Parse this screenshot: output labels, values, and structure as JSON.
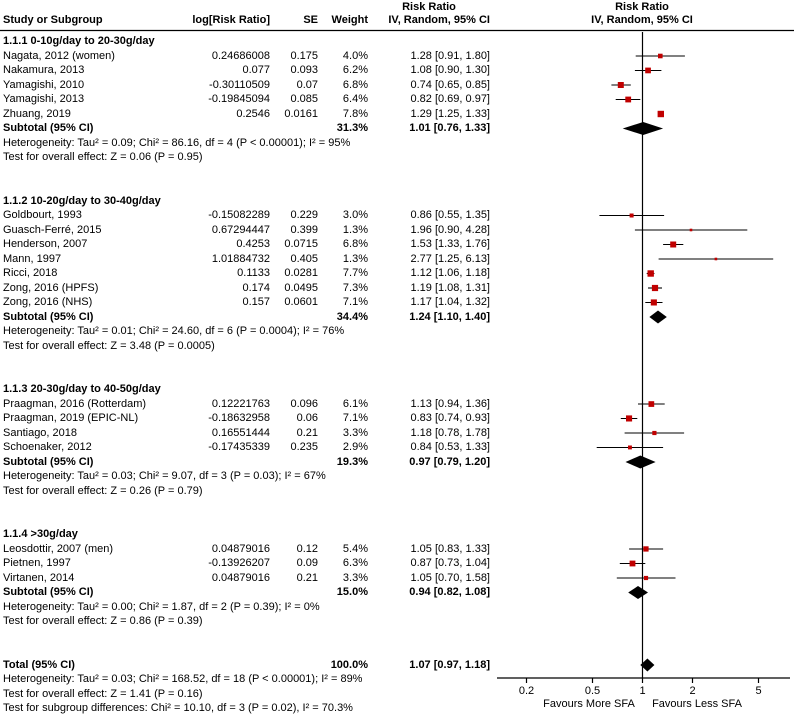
{
  "chart_data": {
    "type": "forest",
    "effect_measure": "Risk Ratio",
    "model": "IV, Random, 95% CI",
    "header": {
      "study": "Study or Subgroup",
      "log_rr": "log[Risk Ratio]",
      "se": "SE",
      "weight": "Weight",
      "ci": "IV, Random, 95% CI",
      "ci_top": "Risk Ratio",
      "plot_top": "Risk Ratio",
      "plot_sub": "IV, Random, 95% CI"
    },
    "axis": {
      "scale": "log",
      "ticks": [
        0.2,
        0.5,
        1,
        2,
        5
      ],
      "tick_labels": [
        "0.2",
        "0.5",
        "1",
        "2",
        "5"
      ],
      "left_label": "Favours More SFA",
      "right_label": "Favours Less SFA"
    },
    "subgroups": [
      {
        "title": "1.1.1 0-10g/day to 20-30g/day",
        "studies": [
          {
            "name": "Nagata, 2012 (women)",
            "log_rr": "0.24686008",
            "se": "0.175",
            "weight": "4.0%",
            "weight_pct": 4.0,
            "ci_text": "1.28 [0.91, 1.80]",
            "est": 1.28,
            "lo": 0.91,
            "hi": 1.8
          },
          {
            "name": "Nakamura, 2013",
            "log_rr": "0.077",
            "se": "0.093",
            "weight": "6.2%",
            "weight_pct": 6.2,
            "ci_text": "1.08 [0.90, 1.30]",
            "est": 1.08,
            "lo": 0.9,
            "hi": 1.3
          },
          {
            "name": "Yamagishi, 2010",
            "log_rr": "-0.30110509",
            "se": "0.07",
            "weight": "6.8%",
            "weight_pct": 6.8,
            "ci_text": "0.74 [0.65, 0.85]",
            "est": 0.74,
            "lo": 0.65,
            "hi": 0.85
          },
          {
            "name": "Yamagishi, 2013",
            "log_rr": "-0.19845094",
            "se": "0.085",
            "weight": "6.4%",
            "weight_pct": 6.4,
            "ci_text": "0.82 [0.69, 0.97]",
            "est": 0.82,
            "lo": 0.69,
            "hi": 0.97
          },
          {
            "name": "Zhuang, 2019",
            "log_rr": "0.2546",
            "se": "0.0161",
            "weight": "7.8%",
            "weight_pct": 7.8,
            "ci_text": "1.29 [1.25, 1.33]",
            "est": 1.29,
            "lo": 1.25,
            "hi": 1.33
          }
        ],
        "subtotal": {
          "label": "Subtotal (95% CI)",
          "weight": "31.3%",
          "ci_text": "1.01 [0.76, 1.33]",
          "est": 1.01,
          "lo": 0.76,
          "hi": 1.33
        },
        "heterogeneity": "Heterogeneity: Tau² = 0.09; Chi² = 86.16, df = 4 (P < 0.00001); I² = 95%",
        "overall_effect": "Test for overall effect: Z = 0.06 (P = 0.95)"
      },
      {
        "title": "1.1.2 10-20g/day to 30-40g/day",
        "studies": [
          {
            "name": "Goldbourt, 1993",
            "log_rr": "-0.15082289",
            "se": "0.229",
            "weight": "3.0%",
            "weight_pct": 3.0,
            "ci_text": "0.86 [0.55, 1.35]",
            "est": 0.86,
            "lo": 0.55,
            "hi": 1.35
          },
          {
            "name": "Guasch-Ferré, 2015",
            "log_rr": "0.67294447",
            "se": "0.399",
            "weight": "1.3%",
            "weight_pct": 1.3,
            "ci_text": "1.96 [0.90, 4.28]",
            "est": 1.96,
            "lo": 0.9,
            "hi": 4.28
          },
          {
            "name": "Henderson, 2007",
            "log_rr": "0.4253",
            "se": "0.0715",
            "weight": "6.8%",
            "weight_pct": 6.8,
            "ci_text": "1.53 [1.33, 1.76]",
            "est": 1.53,
            "lo": 1.33,
            "hi": 1.76
          },
          {
            "name": "Mann, 1997",
            "log_rr": "1.01884732",
            "se": "0.405",
            "weight": "1.3%",
            "weight_pct": 1.3,
            "ci_text": "2.77 [1.25, 6.13]",
            "est": 2.77,
            "lo": 1.25,
            "hi": 6.13
          },
          {
            "name": "Ricci, 2018",
            "log_rr": "0.1133",
            "se": "0.0281",
            "weight": "7.7%",
            "weight_pct": 7.7,
            "ci_text": "1.12 [1.06, 1.18]",
            "est": 1.12,
            "lo": 1.06,
            "hi": 1.18
          },
          {
            "name": "Zong, 2016 (HPFS)",
            "log_rr": "0.174",
            "se": "0.0495",
            "weight": "7.3%",
            "weight_pct": 7.3,
            "ci_text": "1.19 [1.08, 1.31]",
            "est": 1.19,
            "lo": 1.08,
            "hi": 1.31
          },
          {
            "name": "Zong, 2016 (NHS)",
            "log_rr": "0.157",
            "se": "0.0601",
            "weight": "7.1%",
            "weight_pct": 7.1,
            "ci_text": "1.17 [1.04, 1.32]",
            "est": 1.17,
            "lo": 1.04,
            "hi": 1.32
          }
        ],
        "subtotal": {
          "label": "Subtotal (95% CI)",
          "weight": "34.4%",
          "ci_text": "1.24 [1.10, 1.40]",
          "est": 1.24,
          "lo": 1.1,
          "hi": 1.4
        },
        "heterogeneity": "Heterogeneity: Tau² = 0.01; Chi² = 24.60, df = 6 (P = 0.0004); I² = 76%",
        "overall_effect": "Test for overall effect: Z = 3.48 (P = 0.0005)"
      },
      {
        "title": "1.1.3 20-30g/day to 40-50g/day",
        "studies": [
          {
            "name": "Praagman, 2016 (Rotterdam)",
            "log_rr": "0.12221763",
            "se": "0.096",
            "weight": "6.1%",
            "weight_pct": 6.1,
            "ci_text": "1.13 [0.94, 1.36]",
            "est": 1.13,
            "lo": 0.94,
            "hi": 1.36
          },
          {
            "name": "Praagman, 2019 (EPIC-NL)",
            "log_rr": "-0.18632958",
            "se": "0.06",
            "weight": "7.1%",
            "weight_pct": 7.1,
            "ci_text": "0.83 [0.74, 0.93]",
            "est": 0.83,
            "lo": 0.74,
            "hi": 0.93
          },
          {
            "name": "Santiago, 2018",
            "log_rr": "0.16551444",
            "se": "0.21",
            "weight": "3.3%",
            "weight_pct": 3.3,
            "ci_text": "1.18 [0.78, 1.78]",
            "est": 1.18,
            "lo": 0.78,
            "hi": 1.78
          },
          {
            "name": "Schoenaker, 2012",
            "log_rr": "-0.17435339",
            "se": "0.235",
            "weight": "2.9%",
            "weight_pct": 2.9,
            "ci_text": "0.84 [0.53, 1.33]",
            "est": 0.84,
            "lo": 0.53,
            "hi": 1.33
          }
        ],
        "subtotal": {
          "label": "Subtotal (95% CI)",
          "weight": "19.3%",
          "ci_text": "0.97 [0.79, 1.20]",
          "est": 0.97,
          "lo": 0.79,
          "hi": 1.2
        },
        "heterogeneity": "Heterogeneity: Tau² = 0.03; Chi² = 9.07, df = 3 (P = 0.03); I² = 67%",
        "overall_effect": "Test for overall effect: Z = 0.26 (P = 0.79)"
      },
      {
        "title": "1.1.4 >30g/day",
        "studies": [
          {
            "name": "Leosdottir, 2007 (men)",
            "log_rr": "0.04879016",
            "se": "0.12",
            "weight": "5.4%",
            "weight_pct": 5.4,
            "ci_text": "1.05 [0.83, 1.33]",
            "est": 1.05,
            "lo": 0.83,
            "hi": 1.33
          },
          {
            "name": "Pietnen, 1997",
            "log_rr": "-0.13926207",
            "se": "0.09",
            "weight": "6.3%",
            "weight_pct": 6.3,
            "ci_text": "0.87 [0.73, 1.04]",
            "est": 0.87,
            "lo": 0.73,
            "hi": 1.04
          },
          {
            "name": "Virtanen, 2014",
            "log_rr": "0.04879016",
            "se": "0.21",
            "weight": "3.3%",
            "weight_pct": 3.3,
            "ci_text": "1.05 [0.70, 1.58]",
            "est": 1.05,
            "lo": 0.7,
            "hi": 1.58
          }
        ],
        "subtotal": {
          "label": "Subtotal (95% CI)",
          "weight": "15.0%",
          "ci_text": "0.94 [0.82, 1.08]",
          "est": 0.94,
          "lo": 0.82,
          "hi": 1.08
        },
        "heterogeneity": "Heterogeneity: Tau² = 0.00; Chi² = 1.87, df = 2 (P = 0.39); I² = 0%",
        "overall_effect": "Test for overall effect: Z = 0.86 (P = 0.39)"
      }
    ],
    "total": {
      "label": "Total (95% CI)",
      "weight": "100.0%",
      "ci_text": "1.07 [0.97, 1.18]",
      "est": 1.07,
      "lo": 0.97,
      "hi": 1.18,
      "heterogeneity": "Heterogeneity: Tau² = 0.03; Chi² = 168.52, df = 18 (P < 0.00001); I² = 89%",
      "overall_effect": "Test for overall effect: Z = 1.41 (P = 0.16)",
      "subgroup_diff": "Test for subgroup differences: Chi² = 10.10, df = 3 (P = 0.02), I² = 70.3%"
    },
    "colors": {
      "marker": "#c00000",
      "line": "#000000",
      "diamond": "#000000",
      "text": "#000000"
    }
  }
}
